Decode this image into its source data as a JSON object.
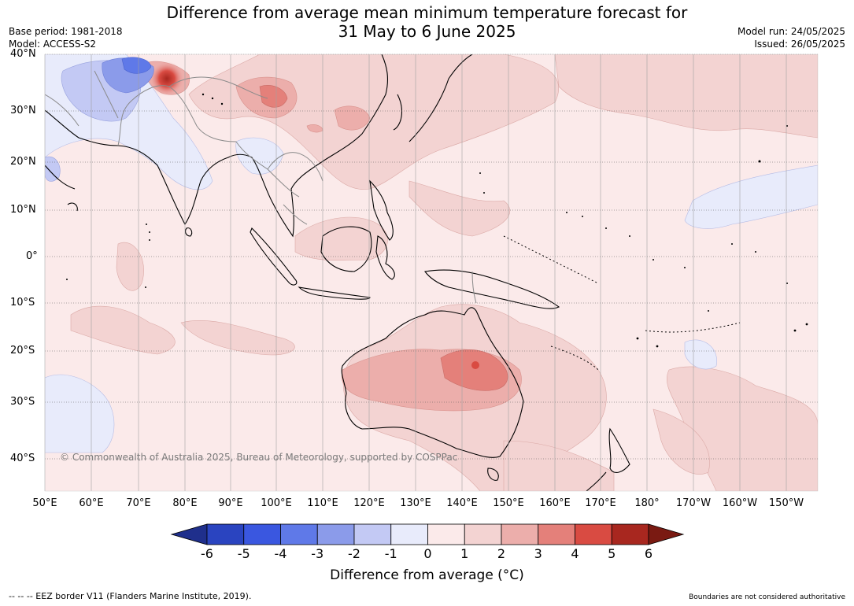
{
  "title_line1": "Difference from average mean minimum temperature forecast for",
  "title_line2": "31 May to 6 June 2025",
  "base_period": "Base period: 1981-2018",
  "model": "Model: ACCESS-S2",
  "model_run": "Model run: 24/05/2025",
  "issued": "Issued: 26/05/2025",
  "lat_labels": [
    "40°N",
    "30°N",
    "20°N",
    "10°N",
    "0°",
    "10°S",
    "20°S",
    "30°S",
    "40°S"
  ],
  "lon_labels": [
    "50°E",
    "60°E",
    "70°E",
    "80°E",
    "90°E",
    "100°E",
    "110°E",
    "120°E",
    "130°E",
    "140°E",
    "150°E",
    "160°E",
    "170°E",
    "180°",
    "170°W",
    "160°W",
    "150°W"
  ],
  "copyright": "© Commonwealth of Australia 2025, Bureau of Meteorology, supported by COSPPac",
  "colorbar": {
    "ticks": [
      "-6",
      "-5",
      "-4",
      "-3",
      "-2",
      "-1",
      "0",
      "1",
      "2",
      "3",
      "4",
      "5",
      "6"
    ],
    "colors": [
      "#1f2f8c",
      "#2a44c0",
      "#3a57e0",
      "#5f79e8",
      "#8b9bea",
      "#c3c9f4",
      "#e8ebfb",
      "#fbeaea",
      "#f3d3d2",
      "#ecaeab",
      "#e4807a",
      "#d94b42",
      "#a8271f",
      "#7a1a12"
    ],
    "label": "Difference from average (°C)"
  },
  "footer_left": "--  --  -- EEZ border V11 (Flanders Marine Institute, 2019).",
  "footer_right": "Boundaries are not considered authoritative"
}
